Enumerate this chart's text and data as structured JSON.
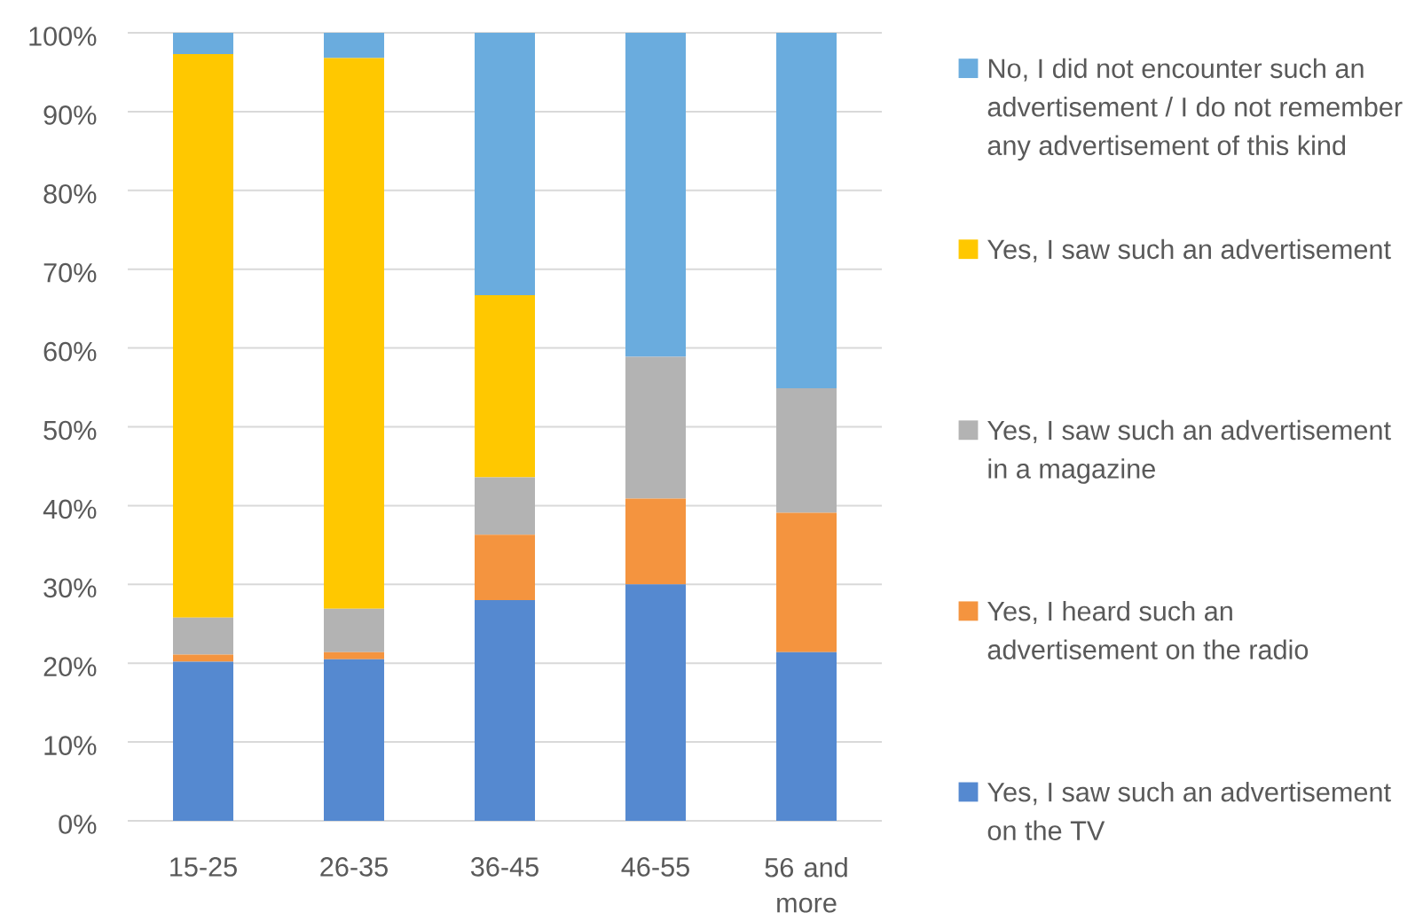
{
  "chart_data": {
    "type": "bar",
    "stacked": true,
    "categories": [
      "15-25",
      "26-35",
      "36-45",
      "46-55",
      "56 and more"
    ],
    "series": [
      {
        "name": "Yes, I saw such an advertisement on the TV",
        "color": "#5589d0",
        "values": [
          20.2,
          20.5,
          28.0,
          30.0,
          21.4
        ]
      },
      {
        "name": "Yes, I heard such an advertisement on the radio",
        "color": "#f4943f",
        "values": [
          0.9,
          0.9,
          8.3,
          10.9,
          17.7
        ]
      },
      {
        "name": "Yes, I saw such an advertisement in a magazine",
        "color": "#b3b3b3",
        "values": [
          4.7,
          5.5,
          7.3,
          18.0,
          15.8
        ]
      },
      {
        "name": "Yes, I saw such an advertisement",
        "color": "#ffc800",
        "values": [
          71.5,
          69.9,
          23.1,
          0,
          0
        ]
      },
      {
        "name": "No, I did not encounter such an advertisement / I do not remember any advertisement of this kind",
        "color": "#6aacde",
        "values": [
          2.7,
          3.2,
          33.3,
          41.1,
          45.1
        ]
      }
    ],
    "ylim": [
      0,
      100
    ],
    "yticks": [
      {
        "value": 0,
        "label": "0%"
      },
      {
        "value": 10,
        "label": "10%"
      },
      {
        "value": 20,
        "label": "20%"
      },
      {
        "value": 30,
        "label": "30%"
      },
      {
        "value": 40,
        "label": "40%"
      },
      {
        "value": 50,
        "label": "50%"
      },
      {
        "value": 60,
        "label": "60%"
      },
      {
        "value": 70,
        "label": "70%"
      },
      {
        "value": 80,
        "label": "80%"
      },
      {
        "value": 90,
        "label": "90%"
      },
      {
        "value": 100,
        "label": "100%"
      }
    ],
    "grid": "y",
    "legend": "right"
  }
}
